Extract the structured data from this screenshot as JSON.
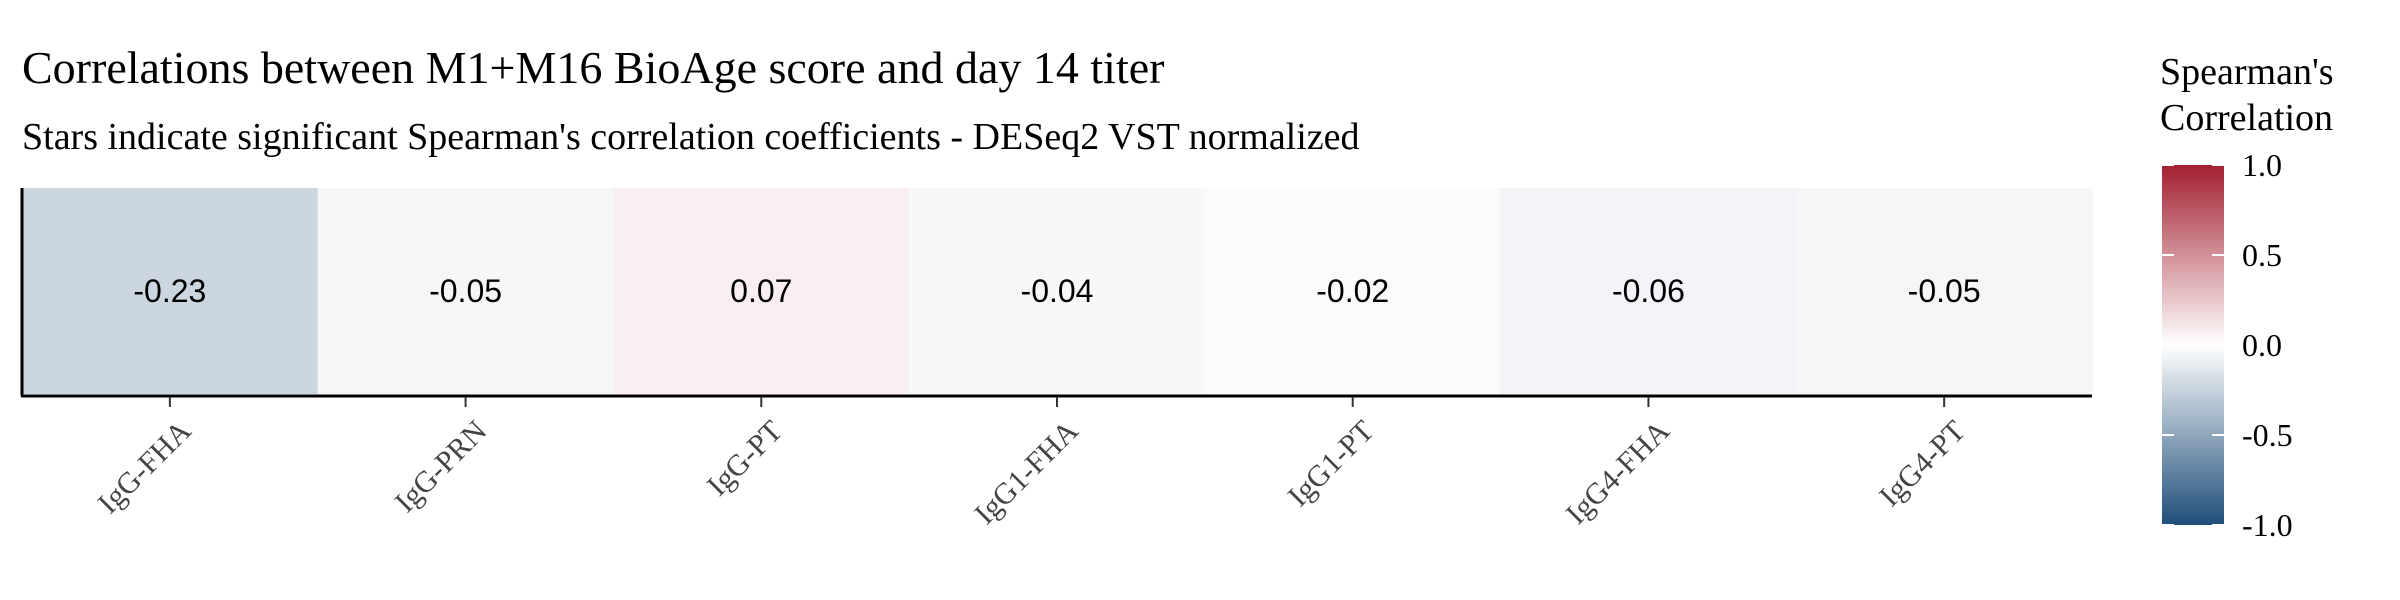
{
  "chart_data": {
    "type": "heatmap",
    "title": "Correlations between M1+M16 BioAge score and day 14 titer",
    "subtitle": "Stars indicate significant Spearman's correlation coefficients - DESeq2 VST normalized",
    "categories": [
      "IgG-FHA",
      "IgG-PRN",
      "IgG-PT",
      "IgG1-FHA",
      "IgG1-PT",
      "IgG4-FHA",
      "IgG4-PT"
    ],
    "values": [
      -0.23,
      -0.05,
      0.07,
      -0.04,
      -0.02,
      -0.06,
      -0.05
    ],
    "value_labels": [
      "-0.23",
      "-0.05",
      "0.07",
      "-0.04",
      "-0.02",
      "-0.06",
      "-0.05"
    ],
    "legend": {
      "title_lines": [
        "Spearman's",
        "Correlation"
      ],
      "range": [
        -1.0,
        1.0
      ],
      "ticks": [
        1.0,
        0.5,
        0.0,
        -0.5,
        -1.0
      ],
      "tick_labels": [
        "1.0",
        "0.5",
        "0.0",
        "-0.5",
        "-1.0"
      ],
      "placement": "right"
    },
    "colors": {
      "low": "#1f4e79",
      "mid": "#ffffff",
      "high": "#a32030"
    },
    "grid": false
  }
}
